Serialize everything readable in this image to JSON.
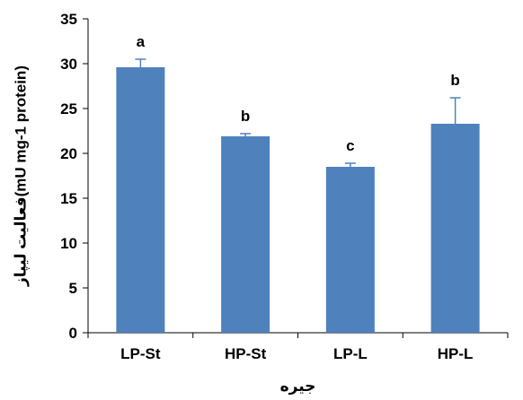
{
  "chart_data": {
    "type": "bar",
    "categories": [
      "LP-St",
      "HP-St",
      "LP-L",
      "HP-L"
    ],
    "values": [
      29.6,
      21.9,
      18.5,
      23.3
    ],
    "errors": [
      0.9,
      0.3,
      0.4,
      2.9
    ],
    "significance_letters": [
      "a",
      "b",
      "c",
      "b"
    ],
    "xlabel": "جیره",
    "ylabel": "فعالیت لیپاز(mU mg-1 protein)",
    "ylim": [
      0,
      35
    ],
    "yticks": [
      0,
      5,
      10,
      15,
      20,
      25,
      30,
      35
    ],
    "grid": false,
    "bar_color": "#4F81BD",
    "error_bar_color": "#4F81BD"
  }
}
